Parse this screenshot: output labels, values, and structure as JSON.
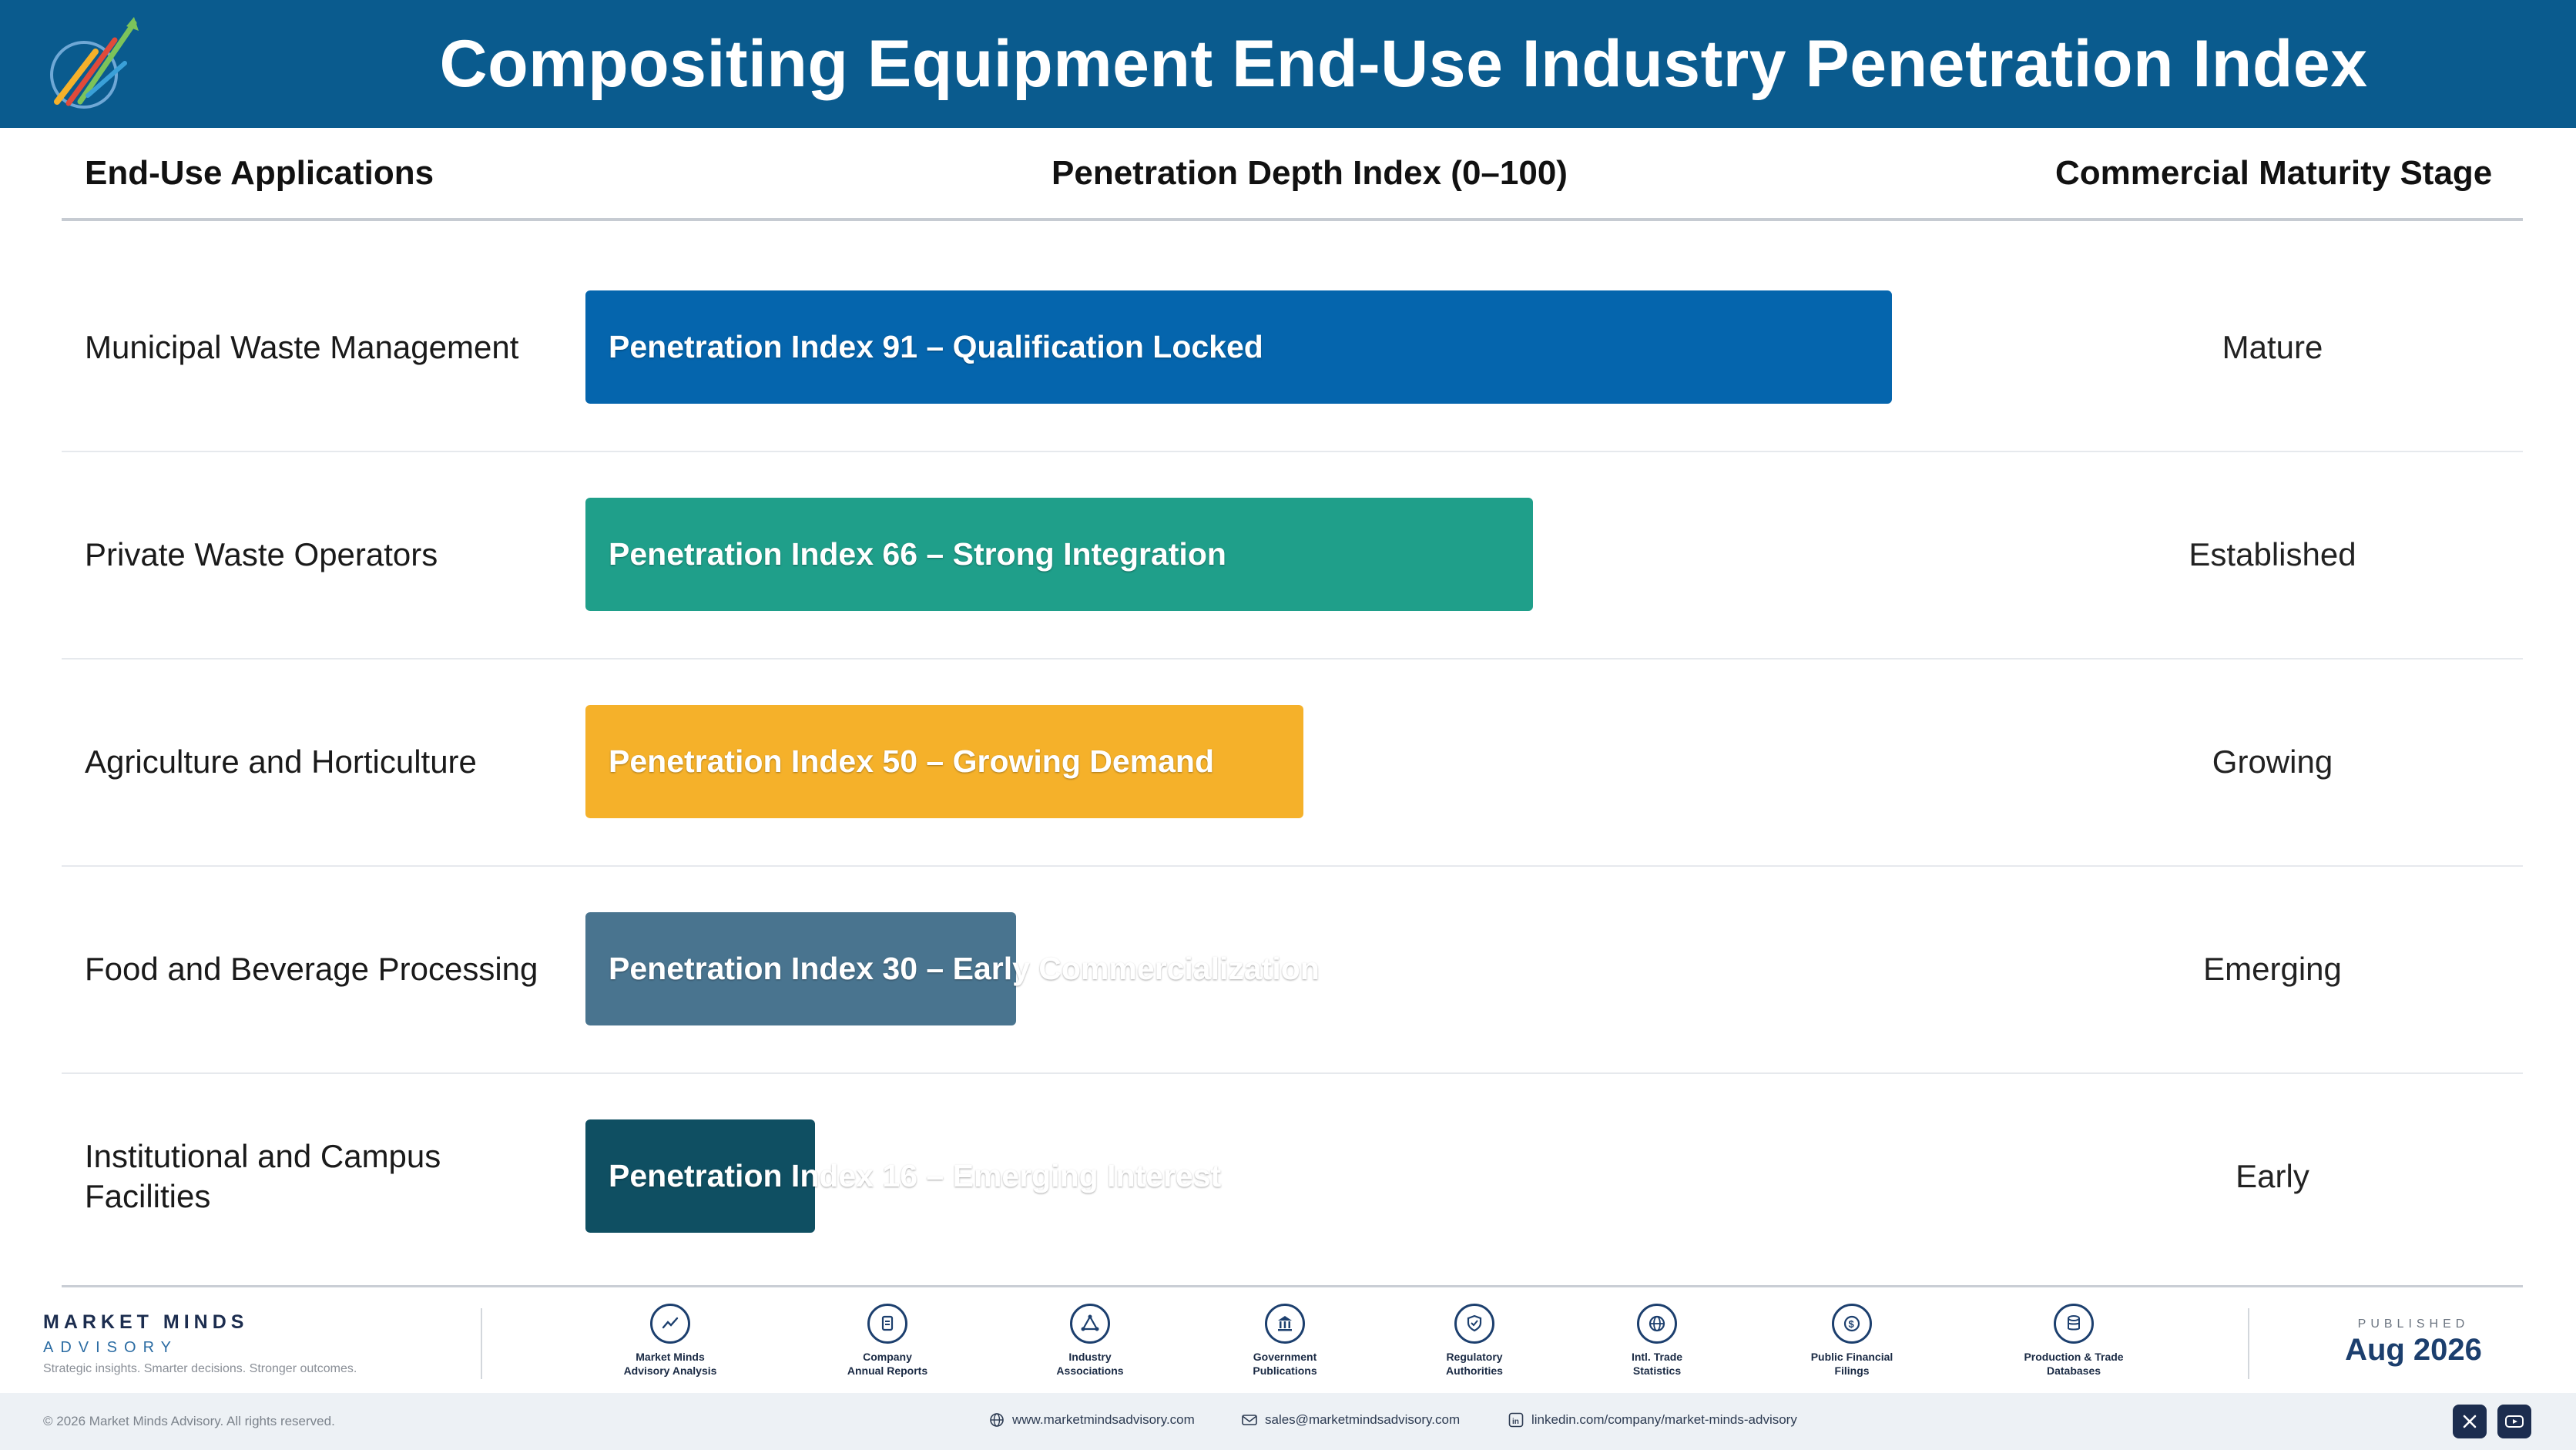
{
  "header": {
    "title": "Compositing Equipment End-Use Industry Penetration Index"
  },
  "columns": {
    "applications": "End-Use Applications",
    "index": "Penetration Depth Index (0–100)",
    "stage": "Commercial Maturity Stage"
  },
  "chart_data": {
    "type": "bar",
    "orientation": "horizontal",
    "title": "Compositing Equipment End-Use Industry Penetration Index",
    "xlim": [
      0,
      100
    ],
    "categories": [
      "Municipal Waste Management",
      "Private Waste Operators",
      "Agriculture and Horticulture",
      "Food and Beverage Processing",
      "Institutional and Campus Facilities"
    ],
    "values": [
      91,
      66,
      50,
      30,
      16
    ],
    "bar_labels": [
      "Penetration Index 91 – Qualification Locked",
      "Penetration Index 66 – Strong Integration",
      "Penetration Index 50 – Growing Demand",
      "Penetration Index 30 – Early Commercialization",
      "Penetration Index 16 – Emerging Interest"
    ],
    "stages": [
      "Mature",
      "Established",
      "Growing",
      "Emerging",
      "Early"
    ],
    "colors": [
      "#0565ad",
      "#1f9f8a",
      "#f5b12a",
      "#49748f",
      "#0f4f62"
    ]
  },
  "footer": {
    "brand_name": "MARKET MINDS",
    "brand_sub": "ADVISORY",
    "tagline": "Strategic insights. Smarter decisions. Stronger outcomes.",
    "sources": [
      {
        "label1": "Market Minds",
        "label2": "Advisory Analysis",
        "icon": "trend-line-icon"
      },
      {
        "label1": "Company",
        "label2": "Annual Reports",
        "icon": "document-icon"
      },
      {
        "label1": "Industry",
        "label2": "Associations",
        "icon": "network-icon"
      },
      {
        "label1": "Government",
        "label2": "Publications",
        "icon": "government-building-icon"
      },
      {
        "label1": "Regulatory",
        "label2": "Authorities",
        "icon": "shield-icon"
      },
      {
        "label1": "Intl. Trade",
        "label2": "Statistics",
        "icon": "globe-icon"
      },
      {
        "label1": "Public Financial",
        "label2": "Filings",
        "icon": "dollar-icon"
      },
      {
        "label1": "Production & Trade",
        "label2": "Databases",
        "icon": "database-icon"
      }
    ],
    "published_label": "PUBLISHED",
    "published_date": "Aug 2026",
    "copyright": "© 2026 Market Minds Advisory. All rights reserved.",
    "website": "www.marketmindsadvisory.com",
    "email": "sales@marketmindsadvisory.com",
    "linkedin": "linkedin.com/company/market-minds-advisory"
  }
}
